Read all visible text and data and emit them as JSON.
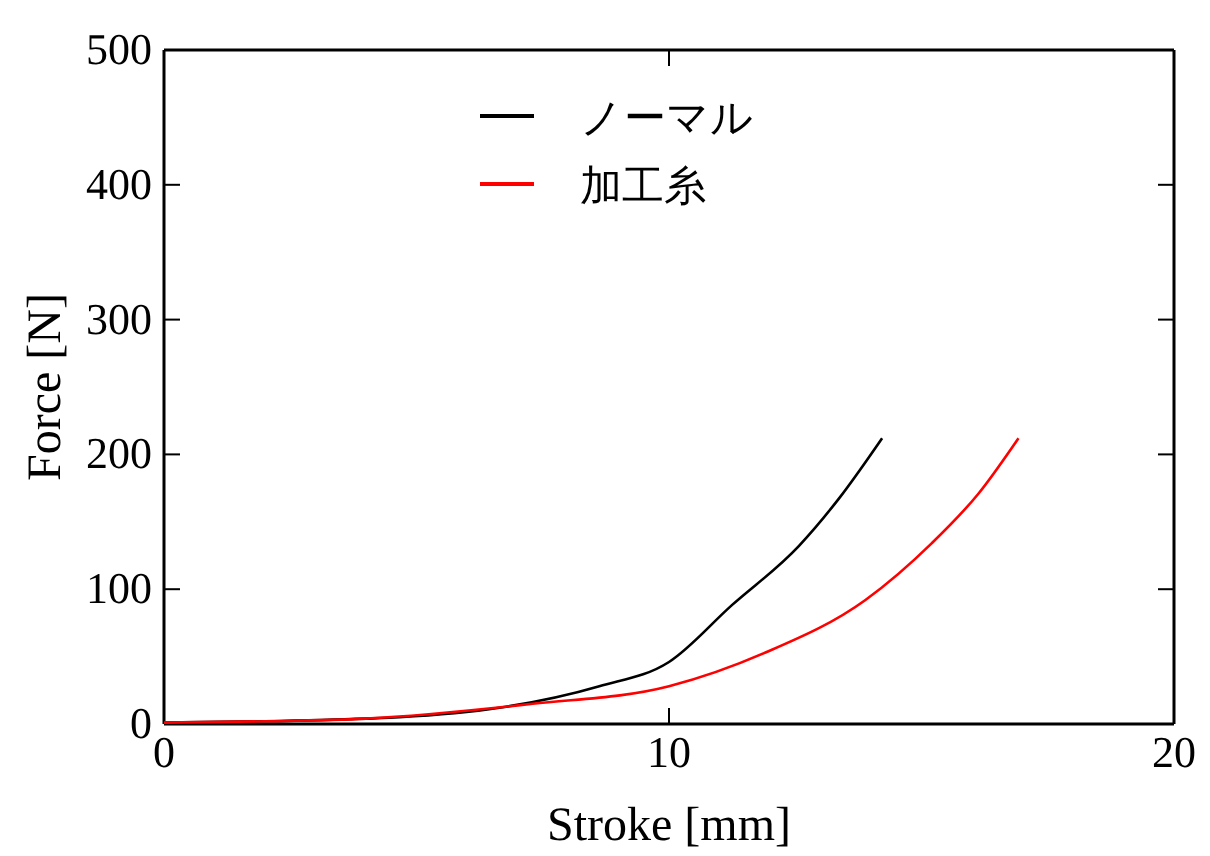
{
  "chart_data": {
    "type": "line",
    "xlabel": "Stroke [mm]",
    "ylabel": "Force [N]",
    "xlim": [
      0,
      20
    ],
    "ylim": [
      0,
      500
    ],
    "xticks": [
      0,
      10,
      20
    ],
    "yticks": [
      0,
      100,
      200,
      300,
      400,
      500
    ],
    "legend": "top",
    "grid": false,
    "series": [
      {
        "name": "ノーマル",
        "color": "#000000",
        "x": [
          0,
          2,
          4,
          4.66,
          6.64,
          8.62,
          10,
          11.24,
          12.57,
          13.36,
          14.22
        ],
        "values": [
          1,
          2,
          4,
          5,
          12,
          28,
          46,
          88,
          132,
          167,
          212
        ]
      },
      {
        "name": "加工糸",
        "color": "#ff0000",
        "x": [
          0,
          2,
          4,
          7.3,
          10,
          11.91,
          13.89,
          15.2,
          16.13,
          16.92
        ],
        "values": [
          1,
          2,
          4,
          15,
          28,
          53,
          92,
          134,
          171,
          212
        ]
      }
    ]
  }
}
